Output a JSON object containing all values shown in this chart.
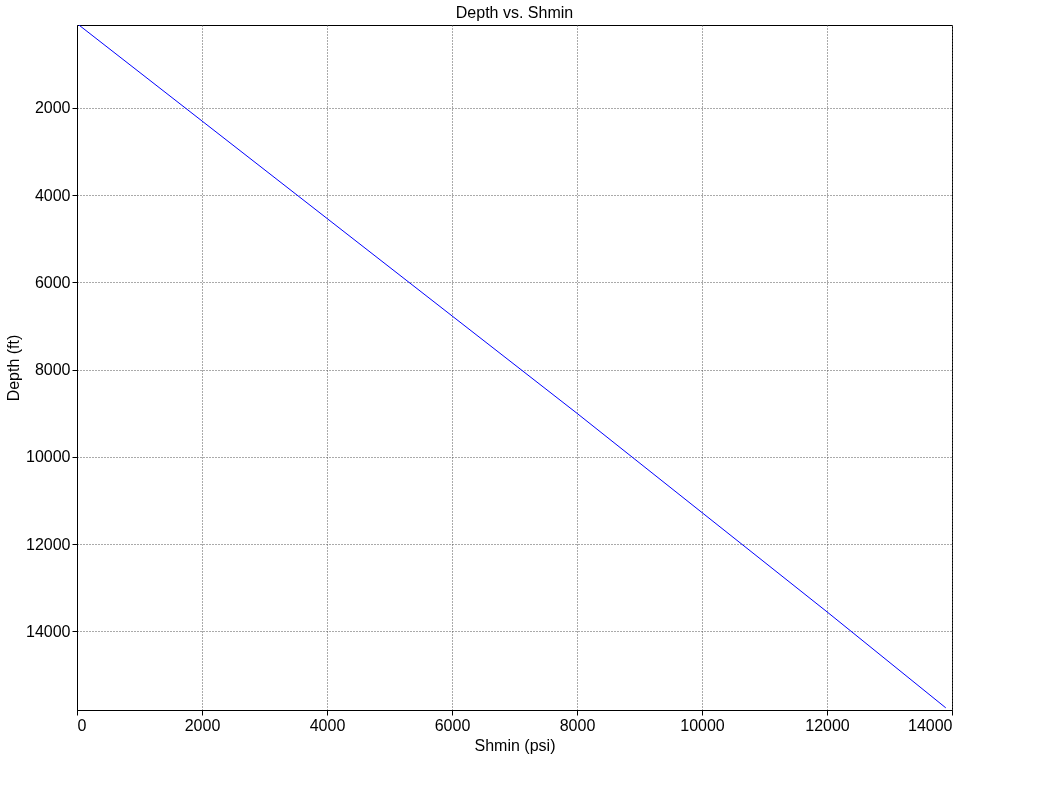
{
  "chart_data": {
    "type": "line",
    "title": "Depth vs. Shmin",
    "xlabel": "Shmin (psi)",
    "ylabel": "Depth (ft)",
    "x": [
      30,
      2000,
      8000,
      12000,
      13900
    ],
    "series": [
      {
        "color": "#0000ff",
        "values": [
          100,
          2300,
          9000,
          13550,
          15750
        ]
      }
    ],
    "xlim": [
      0,
      14000
    ],
    "xticks": [
      0,
      2000,
      4000,
      6000,
      8000,
      10000,
      12000,
      14000
    ],
    "ylim": [
      15800,
      100
    ],
    "yticks": [
      2000,
      4000,
      6000,
      8000,
      10000,
      12000,
      14000
    ],
    "grid": true,
    "line_style": "solid",
    "marker": "none"
  }
}
